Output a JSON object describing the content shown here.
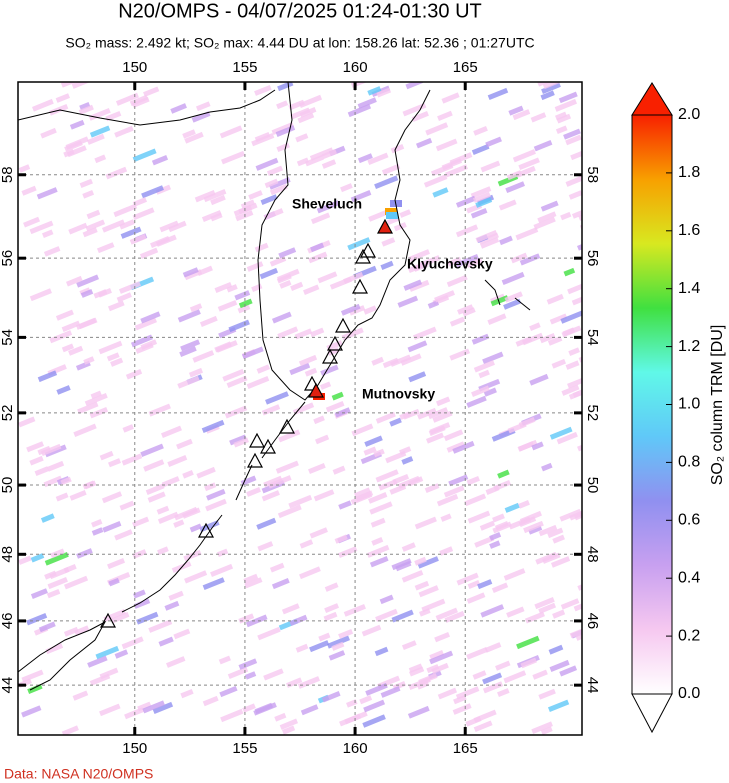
{
  "title": "N20/OMPS - 04/07/2025 01:24-01:30 UT",
  "subtitle": "SO₂ mass: 2.492 kt; SO₂ max: 4.44 DU at lon: 158.26 lat: 52.36 ; 01:27UTC",
  "map": {
    "xlim": [
      144.7,
      170.3
    ],
    "ylim": [
      42.4,
      60.1
    ],
    "xticks": [
      150,
      155,
      160,
      165
    ],
    "yticks": [
      44,
      46,
      48,
      50,
      52,
      54,
      56,
      58
    ],
    "grid": true,
    "volcanoes": [
      "Sheveluch",
      "Klyuchevsky",
      "Mutnovsky"
    ]
  },
  "colorbar": {
    "label": "SO₂ column TRM [DU]",
    "lim": [
      0,
      2
    ],
    "ticks": [
      {
        "value": 0,
        "label": "0.0"
      },
      0.2,
      0.4,
      0.6,
      0.8,
      {
        "value": 1,
        "label": "1.0"
      },
      1.2,
      1.4,
      1.6,
      1.8,
      {
        "value": 2,
        "label": "2.0"
      }
    ],
    "colors": [
      "#ffffff",
      "#f6c8f0",
      "#c8a0f0",
      "#9090f0",
      "#60c8f8",
      "#60f8e8",
      "#40e040",
      "#d8e820",
      "#f8a000",
      "#f82000"
    ]
  },
  "source": "Data: NASA N20/OMPS"
}
